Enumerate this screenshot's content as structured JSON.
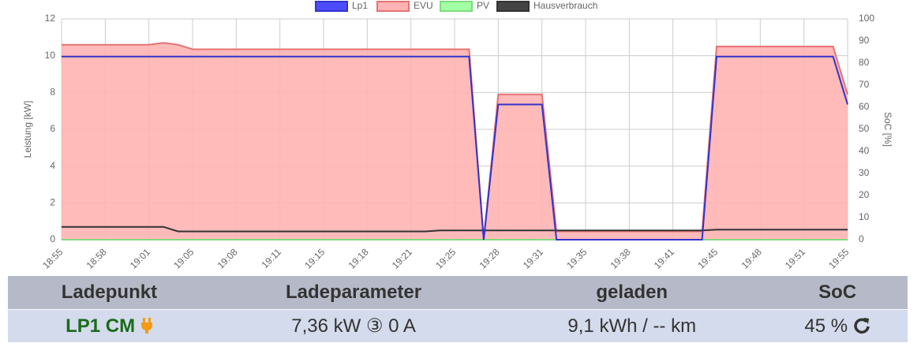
{
  "chart_data": {
    "type": "line",
    "y_label": "Leistung [kW]",
    "y2_label": "SoC [%]",
    "categories": [
      "18:55",
      null,
      null,
      "18:58",
      null,
      null,
      "19:01",
      null,
      null,
      "19:05",
      null,
      null,
      "19:08",
      null,
      null,
      "19:11",
      null,
      null,
      "19:15",
      null,
      null,
      "19:18",
      null,
      null,
      "19:21",
      null,
      null,
      "19:25",
      null,
      null,
      "19:28",
      null,
      null,
      "19:31",
      null,
      null,
      "19:35",
      null,
      null,
      "19:38",
      null,
      null,
      "19:41",
      null,
      null,
      "19:45",
      null,
      null,
      "19:48",
      null,
      null,
      "19:51",
      null,
      null,
      "19:55"
    ],
    "series": [
      {
        "name": "Lp1",
        "color": "#3333cc",
        "legend_fill": "#4d4dff",
        "values": [
          9.95,
          9.95,
          9.95,
          9.95,
          9.95,
          9.95,
          9.95,
          9.95,
          9.95,
          9.95,
          9.95,
          9.95,
          9.95,
          9.95,
          9.95,
          9.95,
          9.95,
          9.95,
          9.95,
          9.95,
          9.95,
          9.95,
          9.95,
          9.95,
          9.95,
          9.95,
          9.95,
          9.95,
          9.95,
          0,
          7.35,
          7.35,
          7.35,
          7.35,
          0,
          0,
          0,
          0,
          0,
          0,
          0,
          0,
          0,
          0,
          0,
          9.95,
          9.95,
          9.95,
          9.95,
          9.95,
          9.95,
          9.95,
          9.95,
          9.95,
          7.35
        ]
      },
      {
        "name": "EVU",
        "color": "#e57373",
        "legend_fill": "#ffb3b3",
        "area": true,
        "values": [
          10.6,
          10.6,
          10.6,
          10.6,
          10.6,
          10.6,
          10.6,
          10.7,
          10.6,
          10.35,
          10.35,
          10.35,
          10.35,
          10.35,
          10.35,
          10.35,
          10.35,
          10.35,
          10.35,
          10.35,
          10.35,
          10.35,
          10.35,
          10.35,
          10.35,
          10.35,
          10.35,
          10.35,
          10.35,
          0,
          7.9,
          7.9,
          7.9,
          7.9,
          0.45,
          0.45,
          0.45,
          0.45,
          0.45,
          0.45,
          0.45,
          0.45,
          0.45,
          0.45,
          0.45,
          10.5,
          10.5,
          10.5,
          10.5,
          10.5,
          10.5,
          10.5,
          10.5,
          10.5,
          7.9
        ]
      },
      {
        "name": "PV",
        "color": "#7fdc7f",
        "legend_fill": "#a3ffa3",
        "values": [
          0,
          0,
          0,
          0,
          0,
          0,
          0,
          0,
          0,
          0,
          0,
          0,
          0,
          0,
          0,
          0,
          0,
          0,
          0,
          0,
          0,
          0,
          0,
          0,
          0,
          0,
          0,
          0,
          0,
          0,
          0,
          0,
          0,
          0,
          0,
          0,
          0,
          0,
          0,
          0,
          0,
          0,
          0,
          0,
          0,
          0,
          0,
          0,
          0,
          0,
          0,
          0,
          0,
          0,
          0
        ]
      },
      {
        "name": "Hausverbrauch",
        "color": "#333333",
        "legend_fill": "#444444",
        "values": [
          0.7,
          0.7,
          0.7,
          0.7,
          0.7,
          0.7,
          0.7,
          0.7,
          0.45,
          0.45,
          0.45,
          0.45,
          0.45,
          0.45,
          0.45,
          0.45,
          0.45,
          0.45,
          0.45,
          0.45,
          0.45,
          0.45,
          0.45,
          0.45,
          0.45,
          0.45,
          0.5,
          0.5,
          0.5,
          0.5,
          0.5,
          0.5,
          0.5,
          0.5,
          0.5,
          0.5,
          0.5,
          0.5,
          0.5,
          0.5,
          0.5,
          0.5,
          0.5,
          0.5,
          0.5,
          0.55,
          0.55,
          0.55,
          0.55,
          0.55,
          0.55,
          0.55,
          0.55,
          0.55,
          0.55
        ]
      }
    ],
    "ylim": [
      0,
      12
    ],
    "yticks": [
      0,
      2,
      4,
      6,
      8,
      10,
      12
    ],
    "y2lim": [
      0,
      100
    ],
    "y2ticks": [
      0,
      10,
      20,
      30,
      40,
      50,
      60,
      70,
      80,
      90,
      100
    ],
    "grid": true,
    "legend": "top"
  },
  "table": {
    "headers": [
      "Ladepunkt",
      "Ladeparameter",
      "geladen",
      "SoC"
    ],
    "rows": [
      [
        "LP1 CM",
        "7,36 kW ③ 0 A",
        "9,1 kWh / -- km",
        "45 %"
      ]
    ]
  }
}
